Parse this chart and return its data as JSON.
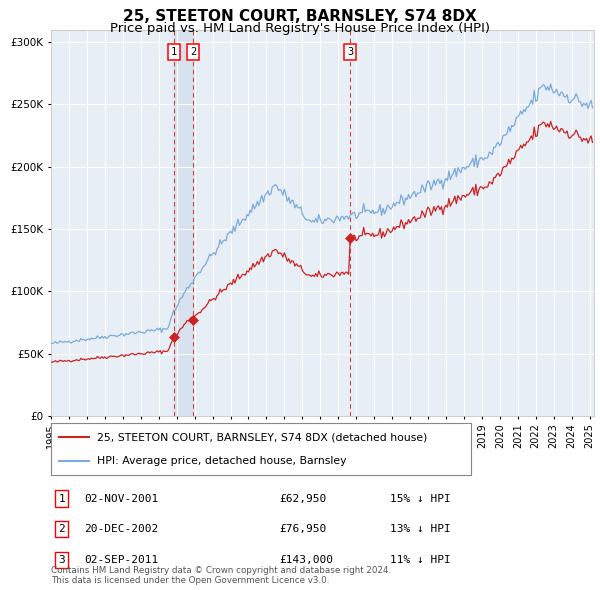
{
  "title": "25, STEETON COURT, BARNSLEY, S74 8DX",
  "subtitle": "Price paid vs. HM Land Registry's House Price Index (HPI)",
  "title_fontsize": 11,
  "subtitle_fontsize": 9.5,
  "hpi_color": "#7aabdb",
  "property_color": "#cc2222",
  "plot_bg_color": "#e8eef5",
  "grid_color": "#ffffff",
  "ylim": [
    0,
    310000
  ],
  "yticks": [
    0,
    50000,
    100000,
    150000,
    200000,
    250000,
    300000
  ],
  "ytick_labels": [
    "£0",
    "£50K",
    "£100K",
    "£150K",
    "£200K",
    "£250K",
    "£300K"
  ],
  "purchase_prices": [
    62950,
    76950,
    143000
  ],
  "purchase_labels": [
    "1",
    "2",
    "3"
  ],
  "purchase_info": [
    {
      "label": "1",
      "date": "02-NOV-2001",
      "price": "£62,950",
      "hpi_note": "15% ↓ HPI"
    },
    {
      "label": "2",
      "date": "20-DEC-2002",
      "price": "£76,950",
      "hpi_note": "13% ↓ HPI"
    },
    {
      "label": "3",
      "date": "02-SEP-2011",
      "price": "£143,000",
      "hpi_note": "11% ↓ HPI"
    }
  ],
  "legend_entries": [
    "25, STEETON COURT, BARNSLEY, S74 8DX (detached house)",
    "HPI: Average price, detached house, Barnsley"
  ],
  "footer_text": "Contains HM Land Registry data © Crown copyright and database right 2024.\nThis data is licensed under the Open Government Licence v3.0.",
  "vspan_color": "#c8d8e8",
  "vline_color": "#cc4444"
}
